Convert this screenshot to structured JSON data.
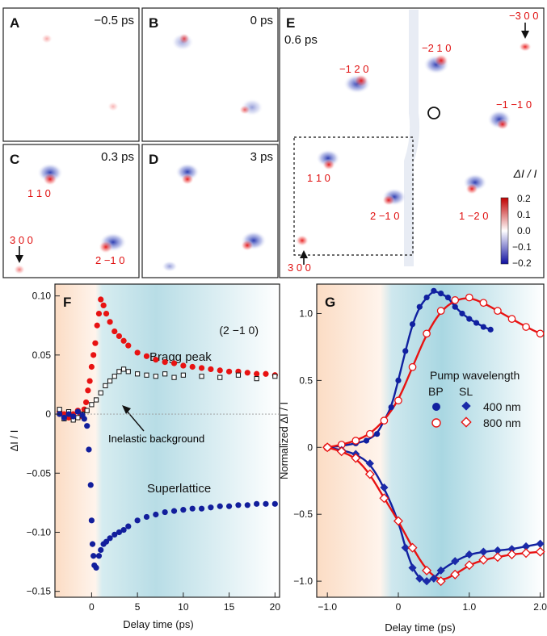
{
  "colors": {
    "red": "#e81212",
    "blue": "#121e9c",
    "bp_blue": "#1020a0",
    "sl_blue": "#1a2aa8",
    "frame": "#222222"
  },
  "panels": {
    "A": {
      "letter": "A",
      "time": "−0.5 ps"
    },
    "B": {
      "letter": "B",
      "time": "0 ps"
    },
    "C": {
      "letter": "C",
      "time": "0.3 ps",
      "labels": [
        "1 1 0",
        "3 0 0",
        "2 −1 0"
      ]
    },
    "D": {
      "letter": "D",
      "time": "3 ps"
    },
    "E": {
      "letter": "E",
      "time": "0.6 ps",
      "labels": [
        "−1 2 0",
        "−2 1 0",
        "−3 0 0",
        "−1 −1 0",
        "1 1 0",
        "2 −1 0",
        "1 −2 0",
        "3 0 0"
      ],
      "colorbar": {
        "title": "ΔI / I",
        "ticks": [
          "0.2",
          "0.1",
          "0.0",
          "−0.1",
          "−0.2"
        ]
      }
    },
    "F": {
      "letter": "F",
      "annotations": {
        "reflection": "(2 −1 0)",
        "bragg": "Bragg peak",
        "inelastic": "Inelastic background",
        "superlattice": "Superlattice"
      }
    },
    "G": {
      "letter": "G",
      "legend": {
        "title": "Pump wavelength",
        "col1": "BP",
        "col2": "SL",
        "row1": "400 nm",
        "row2": "800 nm"
      }
    }
  },
  "chart_data": [
    {
      "type": "scatter",
      "panel": "F",
      "xlabel": "Delay time (ps)",
      "ylabel": "ΔI / I",
      "xlim": [
        -4,
        20.5
      ],
      "ylim": [
        -0.155,
        0.11
      ],
      "xticks": [
        0,
        5,
        10,
        15,
        20
      ],
      "yticks": [
        0.1,
        0.05,
        0,
        -0.05,
        -0.1,
        -0.15
      ],
      "ytick_labels": [
        "0.10",
        "0.05",
        "0",
        "−0.05",
        "−0.10",
        "−0.15"
      ],
      "series": [
        {
          "name": "Bragg peak",
          "marker": "filled-circle",
          "color": "#e81212",
          "x": [
            -3.5,
            -3,
            -2.5,
            -2,
            -1.5,
            -1.2,
            -1,
            -0.8,
            -0.6,
            -0.4,
            -0.2,
            0,
            0.2,
            0.4,
            0.6,
            0.8,
            1,
            1.3,
            1.6,
            2,
            2.5,
            3,
            3.5,
            4,
            5,
            6,
            7,
            8,
            9,
            10,
            11,
            12,
            13,
            14,
            15,
            16,
            17,
            18,
            19,
            20
          ],
          "y": [
            0.002,
            0,
            -0.003,
            0,
            0.003,
            0,
            -0.002,
            0.004,
            0.01,
            0.02,
            0.028,
            0.04,
            0.05,
            0.06,
            0.075,
            0.085,
            0.097,
            0.092,
            0.085,
            0.078,
            0.07,
            0.066,
            0.062,
            0.058,
            0.052,
            0.049,
            0.046,
            0.044,
            0.043,
            0.041,
            0.04,
            0.039,
            0.038,
            0.037,
            0.036,
            0.036,
            0.035,
            0.034,
            0.034,
            0.033
          ]
        },
        {
          "name": "Inelastic background",
          "marker": "open-square",
          "color": "#111111",
          "x": [
            -3.5,
            -3,
            -2.5,
            -2,
            -1.5,
            -1,
            -0.5,
            0,
            0.5,
            1,
            1.5,
            2,
            2.5,
            3,
            3.5,
            4,
            5,
            6,
            7,
            8,
            9,
            10,
            12,
            14,
            16,
            18,
            20
          ],
          "y": [
            0.004,
            -0.004,
            0.002,
            -0.005,
            -0.003,
            0,
            0.003,
            0.008,
            0.012,
            0.018,
            0.024,
            0.028,
            0.032,
            0.036,
            0.038,
            0.036,
            0.034,
            0.033,
            0.032,
            0.034,
            0.031,
            0.033,
            0.032,
            0.031,
            0.033,
            0.03,
            0.032
          ]
        },
        {
          "name": "Superlattice",
          "marker": "filled-circle",
          "color": "#121e9c",
          "x": [
            -3.5,
            -3,
            -2.5,
            -2,
            -1.5,
            -1,
            -0.8,
            -0.5,
            -0.3,
            -0.1,
            0,
            0.1,
            0.2,
            0.3,
            0.5,
            0.8,
            1,
            1.3,
            1.6,
            2,
            2.5,
            3,
            3.5,
            4,
            5,
            6,
            7,
            8,
            9,
            10,
            11,
            12,
            13,
            14,
            15,
            16,
            17,
            18,
            19,
            20
          ],
          "y": [
            0,
            -0.003,
            0,
            -0.002,
            0.002,
            -0.001,
            -0.004,
            -0.01,
            -0.03,
            -0.06,
            -0.09,
            -0.11,
            -0.12,
            -0.128,
            -0.13,
            -0.12,
            -0.115,
            -0.11,
            -0.108,
            -0.105,
            -0.102,
            -0.1,
            -0.098,
            -0.095,
            -0.09,
            -0.087,
            -0.085,
            -0.083,
            -0.082,
            -0.081,
            -0.08,
            -0.08,
            -0.079,
            -0.078,
            -0.078,
            -0.077,
            -0.077,
            -0.076,
            -0.076,
            -0.076
          ]
        }
      ]
    },
    {
      "type": "scatter",
      "panel": "G",
      "xlabel": "Delay time (ps)",
      "ylabel": "Normalized ΔI / I",
      "xlim": [
        -1.15,
        2.05
      ],
      "ylim": [
        -1.12,
        1.22
      ],
      "xticks": [
        -1,
        0,
        1,
        2
      ],
      "xtick_labels": [
        "−1.0",
        "0",
        "1.0",
        "2.0"
      ],
      "yticks": [
        1,
        0.5,
        0,
        -0.5,
        -1
      ],
      "ytick_labels": [
        "1.0",
        "0.5",
        "0",
        "−0.5",
        "−1.0"
      ],
      "series": [
        {
          "name": "BP 400 nm",
          "marker": "filled-circle",
          "color": "#1020a0",
          "x": [
            -1,
            -0.8,
            -0.6,
            -0.45,
            -0.3,
            -0.2,
            -0.1,
            0,
            0.1,
            0.2,
            0.3,
            0.4,
            0.5,
            0.6,
            0.7,
            0.8,
            0.9,
            1.0,
            1.1,
            1.2,
            1.3
          ],
          "y": [
            0,
            0.01,
            0.03,
            0.05,
            0.1,
            0.2,
            0.3,
            0.5,
            0.72,
            0.92,
            1.05,
            1.12,
            1.17,
            1.15,
            1.12,
            1.05,
            1.0,
            0.96,
            0.93,
            0.9,
            0.88
          ]
        },
        {
          "name": "BP 800 nm",
          "marker": "open-circle",
          "color": "#e81212",
          "x": [
            -1,
            -0.8,
            -0.6,
            -0.4,
            -0.2,
            0,
            0.2,
            0.4,
            0.6,
            0.8,
            1.0,
            1.2,
            1.4,
            1.6,
            1.8,
            2.0
          ],
          "y": [
            0,
            0.02,
            0.05,
            0.1,
            0.2,
            0.35,
            0.6,
            0.85,
            1.02,
            1.1,
            1.12,
            1.08,
            1.02,
            0.96,
            0.9,
            0.85
          ]
        },
        {
          "name": "SL 400 nm",
          "marker": "filled-diamond",
          "color": "#1a2aa8",
          "x": [
            -1,
            -0.8,
            -0.6,
            -0.4,
            -0.2,
            0,
            0.1,
            0.2,
            0.3,
            0.4,
            0.5,
            0.6,
            0.8,
            1.0,
            1.2,
            1.4,
            1.6,
            1.8,
            2.0
          ],
          "y": [
            0,
            -0.02,
            -0.05,
            -0.12,
            -0.3,
            -0.55,
            -0.75,
            -0.9,
            -0.98,
            -1.0,
            -0.98,
            -0.92,
            -0.85,
            -0.8,
            -0.78,
            -0.77,
            -0.76,
            -0.74,
            -0.72
          ]
        },
        {
          "name": "SL 800 nm",
          "marker": "open-diamond",
          "color": "#e81212",
          "x": [
            -1,
            -0.8,
            -0.6,
            -0.4,
            -0.2,
            0,
            0.2,
            0.4,
            0.6,
            0.8,
            1.0,
            1.2,
            1.4,
            1.6,
            1.8,
            2.0
          ],
          "y": [
            0,
            -0.03,
            -0.08,
            -0.2,
            -0.38,
            -0.55,
            -0.75,
            -0.92,
            -1.0,
            -0.95,
            -0.88,
            -0.84,
            -0.82,
            -0.8,
            -0.79,
            -0.78
          ]
        }
      ],
      "fits": [
        {
          "series": "BP 400 nm",
          "color": "#1020a0"
        },
        {
          "series": "BP 800 nm",
          "color": "#e81212"
        },
        {
          "series": "SL 400 nm",
          "color": "#1020a0"
        },
        {
          "series": "SL 800 nm",
          "color": "#e81212"
        }
      ]
    }
  ]
}
